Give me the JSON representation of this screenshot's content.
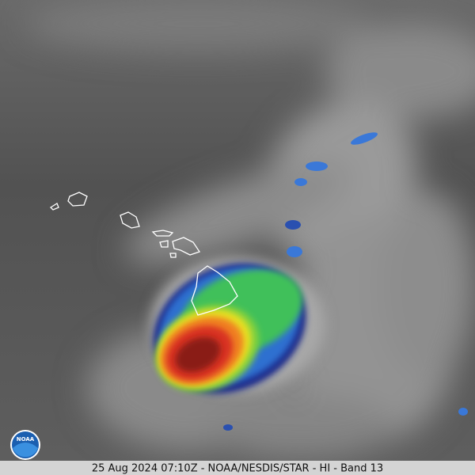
{
  "caption": "25 Aug 2024 07:10Z - NOAA/NESDIS/STAR - HI - Band 13",
  "logo": {
    "text": "NOAA"
  }
}
